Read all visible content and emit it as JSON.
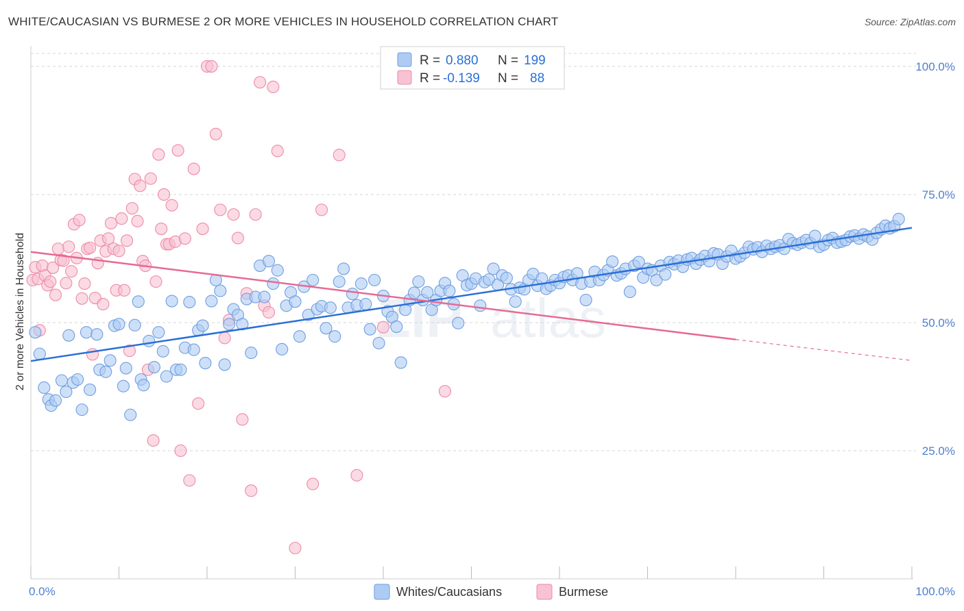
{
  "title": "WHITE/CAUCASIAN VS BURMESE 2 OR MORE VEHICLES IN HOUSEHOLD CORRELATION CHART",
  "source": "Source: ZipAtlas.com",
  "watermark": {
    "zip": "ZIP",
    "atlas": "atlas"
  },
  "colors": {
    "blue_fill": "#aecbf3",
    "blue_stroke": "#6f9ee0",
    "blue_line": "#2a6fd6",
    "pink_fill": "#f8c2d2",
    "pink_stroke": "#ec8aa8",
    "pink_line": "#e66a93",
    "tick_text": "#4a7fd0",
    "grid": "#d5d5d5"
  },
  "legend": {
    "rows": [
      {
        "r_label": "R =",
        "r_value": "0.880",
        "n_label": "N =",
        "n_value": "199"
      },
      {
        "r_label": "R =",
        "r_value": "-0.139",
        "n_label": "N =",
        "n_value": "88"
      }
    ],
    "bottom": [
      "Whites/Caucasians",
      "Burmese"
    ]
  },
  "chart_data": {
    "type": "scatter",
    "title": "WHITE/CAUCASIAN VS BURMESE 2 OR MORE VEHICLES IN HOUSEHOLD CORRELATION CHART",
    "xlabel": "",
    "ylabel": "2 or more Vehicles in Household",
    "xlim": [
      0,
      100
    ],
    "ylim": [
      0,
      104
    ],
    "x_tick_labels": [
      "0.0%",
      "100.0%"
    ],
    "y_ticks": [
      25,
      50,
      75,
      100
    ],
    "y_tick_labels": [
      "25.0%",
      "50.0%",
      "75.0%",
      "100.0%"
    ],
    "grid": true,
    "legend_position": "top-center",
    "series": [
      {
        "name": "Whites/Caucasians",
        "r": 0.88,
        "n": 199,
        "trend": {
          "x": [
            0,
            100
          ],
          "y": [
            42.5,
            68.5
          ]
        },
        "points": [
          [
            0.5,
            48.1
          ],
          [
            1,
            43.9
          ],
          [
            1.5,
            37.3
          ],
          [
            2,
            35
          ],
          [
            2.3,
            33.8
          ],
          [
            2.8,
            34.8
          ],
          [
            3.5,
            38.7
          ],
          [
            4,
            36.5
          ],
          [
            4.3,
            47.5
          ],
          [
            4.8,
            38.3
          ],
          [
            5.3,
            38.9
          ],
          [
            5.8,
            33
          ],
          [
            6.3,
            48.1
          ],
          [
            6.7,
            36.9
          ],
          [
            7.5,
            47.7
          ],
          [
            7.8,
            40.8
          ],
          [
            8.5,
            40.4
          ],
          [
            9,
            42.6
          ],
          [
            9.5,
            49.4
          ],
          [
            10,
            49.7
          ],
          [
            10.5,
            37.6
          ],
          [
            10.8,
            41.1
          ],
          [
            11.3,
            32
          ],
          [
            11.8,
            49.5
          ],
          [
            12.2,
            54.1
          ],
          [
            12.5,
            38.9
          ],
          [
            12.8,
            37.8
          ],
          [
            13.4,
            46.4
          ],
          [
            14,
            41.3
          ],
          [
            14.5,
            48.1
          ],
          [
            15,
            44.4
          ],
          [
            15.4,
            39.5
          ],
          [
            16,
            54.2
          ],
          [
            16.5,
            40.8
          ],
          [
            17,
            40.8
          ],
          [
            17.5,
            45.1
          ],
          [
            18,
            54
          ],
          [
            18.5,
            44.7
          ],
          [
            19,
            48.5
          ],
          [
            19.5,
            49.4
          ],
          [
            19.8,
            42.1
          ],
          [
            20.5,
            54.2
          ],
          [
            21,
            58.3
          ],
          [
            21.5,
            56.2
          ],
          [
            22,
            41.8
          ],
          [
            22.5,
            49.7
          ],
          [
            23,
            52.6
          ],
          [
            23.5,
            51.5
          ],
          [
            24,
            49.7
          ],
          [
            24.5,
            54.6
          ],
          [
            25,
            44.1
          ],
          [
            25.5,
            55
          ],
          [
            26,
            61.1
          ],
          [
            26.5,
            55
          ],
          [
            27,
            62
          ],
          [
            27.5,
            57.6
          ],
          [
            28,
            60.2
          ],
          [
            28.5,
            44.8
          ],
          [
            29,
            53.3
          ],
          [
            29.5,
            55.9
          ],
          [
            30,
            54.1
          ],
          [
            30.5,
            47.3
          ],
          [
            31,
            57
          ],
          [
            31.5,
            51.5
          ],
          [
            32,
            58.3
          ],
          [
            32.5,
            52.6
          ],
          [
            33,
            53.2
          ],
          [
            33.5,
            48.9
          ],
          [
            34,
            52.9
          ],
          [
            34.5,
            47.3
          ],
          [
            35,
            58
          ],
          [
            35.5,
            60.5
          ],
          [
            36,
            52.9
          ],
          [
            36.5,
            55.6
          ],
          [
            37,
            53.4
          ],
          [
            37.5,
            57.6
          ],
          [
            38,
            53.6
          ],
          [
            38.5,
            48.7
          ],
          [
            39,
            58.3
          ],
          [
            39.5,
            46
          ],
          [
            40,
            55.2
          ],
          [
            40.5,
            52.2
          ],
          [
            41,
            51.1
          ],
          [
            41.5,
            49.2
          ],
          [
            42,
            42.2
          ],
          [
            42.5,
            52.5
          ],
          [
            43,
            54.4
          ],
          [
            43.5,
            55.8
          ],
          [
            44,
            58
          ],
          [
            44.5,
            54.4
          ],
          [
            45,
            55.9
          ],
          [
            45.5,
            52.5
          ],
          [
            46,
            54.4
          ],
          [
            46.5,
            56.2
          ],
          [
            47,
            57.7
          ],
          [
            47.5,
            56.2
          ],
          [
            48,
            53.6
          ],
          [
            48.5,
            49.9
          ],
          [
            49,
            59.2
          ],
          [
            49.5,
            57.3
          ],
          [
            50,
            57.6
          ],
          [
            50.5,
            58.6
          ],
          [
            51,
            53.3
          ],
          [
            51.5,
            57.9
          ],
          [
            52,
            58.4
          ],
          [
            52.5,
            60.5
          ],
          [
            53,
            57.4
          ],
          [
            53.5,
            59.2
          ],
          [
            54,
            58.7
          ],
          [
            54.5,
            56.5
          ],
          [
            55,
            54.1
          ],
          [
            55.5,
            56.8
          ],
          [
            56,
            56.5
          ],
          [
            56.5,
            58.3
          ],
          [
            57,
            59.5
          ],
          [
            57.5,
            57.2
          ],
          [
            58,
            58.6
          ],
          [
            58.5,
            56.6
          ],
          [
            59,
            57.2
          ],
          [
            59.5,
            58.3
          ],
          [
            60,
            57.7
          ],
          [
            60.5,
            58.9
          ],
          [
            61,
            59.2
          ],
          [
            61.5,
            58.3
          ],
          [
            62,
            59.6
          ],
          [
            62.5,
            57.6
          ],
          [
            63,
            54.4
          ],
          [
            63.5,
            58
          ],
          [
            64,
            59.9
          ],
          [
            64.5,
            58.3
          ],
          [
            65,
            59.3
          ],
          [
            65.5,
            60.2
          ],
          [
            66,
            61.9
          ],
          [
            66.5,
            59.2
          ],
          [
            67,
            59.6
          ],
          [
            67.5,
            60.5
          ],
          [
            68,
            56
          ],
          [
            68.5,
            61.1
          ],
          [
            69,
            61.8
          ],
          [
            69.5,
            58.8
          ],
          [
            70,
            60.5
          ],
          [
            70.5,
            60.2
          ],
          [
            71,
            58.3
          ],
          [
            71.5,
            61.1
          ],
          [
            72,
            59.4
          ],
          [
            72.5,
            61.8
          ],
          [
            73,
            61.4
          ],
          [
            73.5,
            62.1
          ],
          [
            74,
            60.9
          ],
          [
            74.5,
            62.3
          ],
          [
            75,
            62.6
          ],
          [
            75.5,
            61.5
          ],
          [
            76,
            62.3
          ],
          [
            76.5,
            63
          ],
          [
            77,
            62
          ],
          [
            77.5,
            63.5
          ],
          [
            78,
            63.3
          ],
          [
            78.5,
            61.5
          ],
          [
            79,
            62.9
          ],
          [
            79.5,
            64
          ],
          [
            80,
            62.5
          ],
          [
            80.5,
            62.9
          ],
          [
            81,
            63.6
          ],
          [
            81.5,
            64.8
          ],
          [
            82,
            64.3
          ],
          [
            82.5,
            64.7
          ],
          [
            83,
            63.8
          ],
          [
            83.5,
            65
          ],
          [
            84,
            64.4
          ],
          [
            84.5,
            64.8
          ],
          [
            85,
            65.1
          ],
          [
            85.5,
            64.4
          ],
          [
            86,
            66.3
          ],
          [
            86.5,
            65.5
          ],
          [
            87,
            65.2
          ],
          [
            87.5,
            65.6
          ],
          [
            88,
            66.1
          ],
          [
            88.5,
            65.5
          ],
          [
            89,
            66.9
          ],
          [
            89.5,
            64.8
          ],
          [
            90,
            65.2
          ],
          [
            90.5,
            66.1
          ],
          [
            91,
            66.5
          ],
          [
            91.5,
            65.6
          ],
          [
            92,
            65.8
          ],
          [
            92.5,
            66.1
          ],
          [
            93,
            66.8
          ],
          [
            93.5,
            67
          ],
          [
            94,
            66.4
          ],
          [
            94.5,
            67.2
          ],
          [
            95,
            66.8
          ],
          [
            95.5,
            66.2
          ],
          [
            96,
            67.5
          ],
          [
            96.5,
            68.2
          ],
          [
            97,
            68.9
          ],
          [
            97.5,
            68.4
          ],
          [
            98,
            68.8
          ],
          [
            98.5,
            70.2
          ]
        ]
      },
      {
        "name": "Burmese",
        "r": -0.139,
        "n": 88,
        "trend": {
          "x": [
            0,
            80
          ],
          "y": [
            63.8,
            46.7
          ]
        },
        "trend_dashed": {
          "x": [
            80,
            100
          ],
          "y": [
            46.7,
            42.6
          ]
        },
        "points": [
          [
            0.2,
            58.3
          ],
          [
            0.5,
            60.8
          ],
          [
            0.8,
            58.5
          ],
          [
            1,
            48.5
          ],
          [
            1.3,
            61.1
          ],
          [
            1.6,
            59.2
          ],
          [
            1.9,
            57.3
          ],
          [
            2.2,
            58
          ],
          [
            2.5,
            60.7
          ],
          [
            2.8,
            55.4
          ],
          [
            3.1,
            64.4
          ],
          [
            3.4,
            62.2
          ],
          [
            3.7,
            62.1
          ],
          [
            4,
            57.7
          ],
          [
            4.3,
            64.8
          ],
          [
            4.6,
            60
          ],
          [
            4.9,
            69.2
          ],
          [
            5.2,
            62.6
          ],
          [
            5.5,
            70
          ],
          [
            5.8,
            54.7
          ],
          [
            6.1,
            57.6
          ],
          [
            6.4,
            64.4
          ],
          [
            6.7,
            64.6
          ],
          [
            7,
            43.8
          ],
          [
            7.3,
            54.8
          ],
          [
            7.6,
            61.6
          ],
          [
            7.9,
            66
          ],
          [
            8.2,
            53.6
          ],
          [
            8.5,
            63.9
          ],
          [
            8.8,
            66.4
          ],
          [
            9.1,
            69.4
          ],
          [
            9.4,
            64.4
          ],
          [
            9.7,
            56.3
          ],
          [
            10,
            64
          ],
          [
            10.3,
            70.3
          ],
          [
            10.6,
            56.3
          ],
          [
            10.9,
            66
          ],
          [
            11.2,
            44.5
          ],
          [
            11.5,
            72.3
          ],
          [
            11.8,
            78
          ],
          [
            12.1,
            69.8
          ],
          [
            12.4,
            76.7
          ],
          [
            12.7,
            62
          ],
          [
            13,
            61.1
          ],
          [
            13.3,
            40.8
          ],
          [
            13.6,
            78.1
          ],
          [
            13.9,
            27
          ],
          [
            14.2,
            58
          ],
          [
            14.5,
            82.8
          ],
          [
            14.8,
            68.3
          ],
          [
            15.1,
            75
          ],
          [
            15.4,
            65.3
          ],
          [
            15.7,
            65.3
          ],
          [
            16,
            72.9
          ],
          [
            16.4,
            65.8
          ],
          [
            16.7,
            83.6
          ],
          [
            17,
            25
          ],
          [
            17.5,
            66.4
          ],
          [
            18,
            19.2
          ],
          [
            18.5,
            80
          ],
          [
            19,
            34.2
          ],
          [
            19.5,
            68.3
          ],
          [
            20,
            100
          ],
          [
            20.5,
            100
          ],
          [
            21,
            86.8
          ],
          [
            21.5,
            72
          ],
          [
            22,
            47
          ],
          [
            22.5,
            50.5
          ],
          [
            23,
            71.1
          ],
          [
            23.5,
            66.5
          ],
          [
            24,
            31.1
          ],
          [
            24.5,
            55.7
          ],
          [
            25,
            17.2
          ],
          [
            25.5,
            71.1
          ],
          [
            26,
            96.9
          ],
          [
            26.5,
            53.3
          ],
          [
            27,
            52
          ],
          [
            27.5,
            96
          ],
          [
            28,
            83.5
          ],
          [
            30,
            6
          ],
          [
            32,
            18.5
          ],
          [
            33,
            72
          ],
          [
            35,
            82.7
          ],
          [
            37,
            20.2
          ],
          [
            40,
            49.1
          ],
          [
            47,
            36.6
          ]
        ]
      }
    ]
  }
}
